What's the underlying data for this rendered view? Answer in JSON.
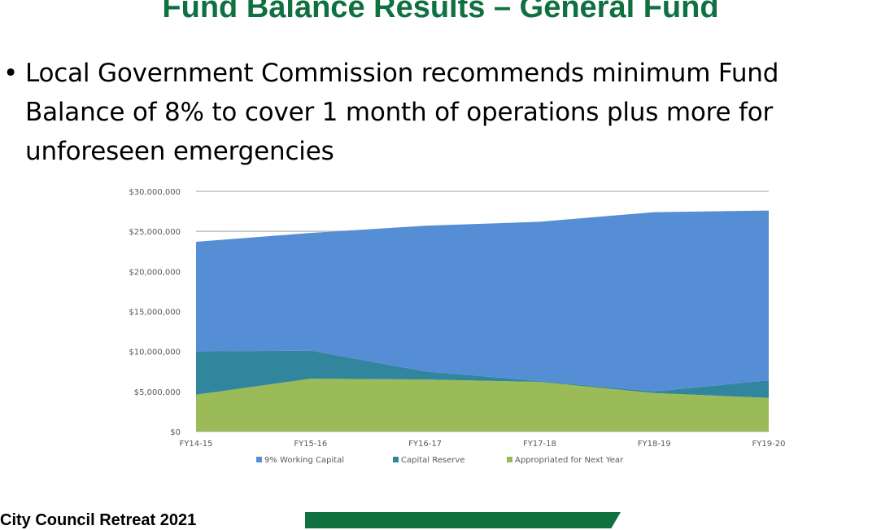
{
  "slide": {
    "title": "Fund Balance Results – General Fund",
    "bullet": "Local Government Commission recommends minimum Fund Balance of 8% to cover 1 month of operations plus more for unforeseen emergencies",
    "footer": "City Council Retreat 2021"
  },
  "chart_data": {
    "type": "area",
    "stacked": true,
    "categories": [
      "FY14-15",
      "FY15-16",
      "FY16-17",
      "FY17-18",
      "FY18-19",
      "FY19-20"
    ],
    "series": [
      {
        "name": "Appropriated for Next Year",
        "color": "#9bbb59",
        "values": [
          4600000,
          6600000,
          6500000,
          6200000,
          4800000,
          4200000
        ]
      },
      {
        "name": "Capital Reserve",
        "color": "#31859c",
        "values": [
          5400000,
          3500000,
          1000000,
          100000,
          200000,
          2200000
        ]
      },
      {
        "name": "9% Working Capital",
        "color": "#558ed5",
        "values": [
          13700000,
          14700000,
          18200000,
          19900000,
          22400000,
          21200000
        ]
      }
    ],
    "legend_order": [
      "9% Working Capital",
      "Capital Reserve",
      "Appropriated for Next Year"
    ],
    "yticks": [
      "$0",
      "$5,000,000",
      "$10,000,000",
      "$15,000,000",
      "$20,000,000",
      "$25,000,000",
      "$30,000,000"
    ],
    "ylim": [
      0,
      30000000
    ],
    "grid": true,
    "legend_position": "bottom"
  }
}
